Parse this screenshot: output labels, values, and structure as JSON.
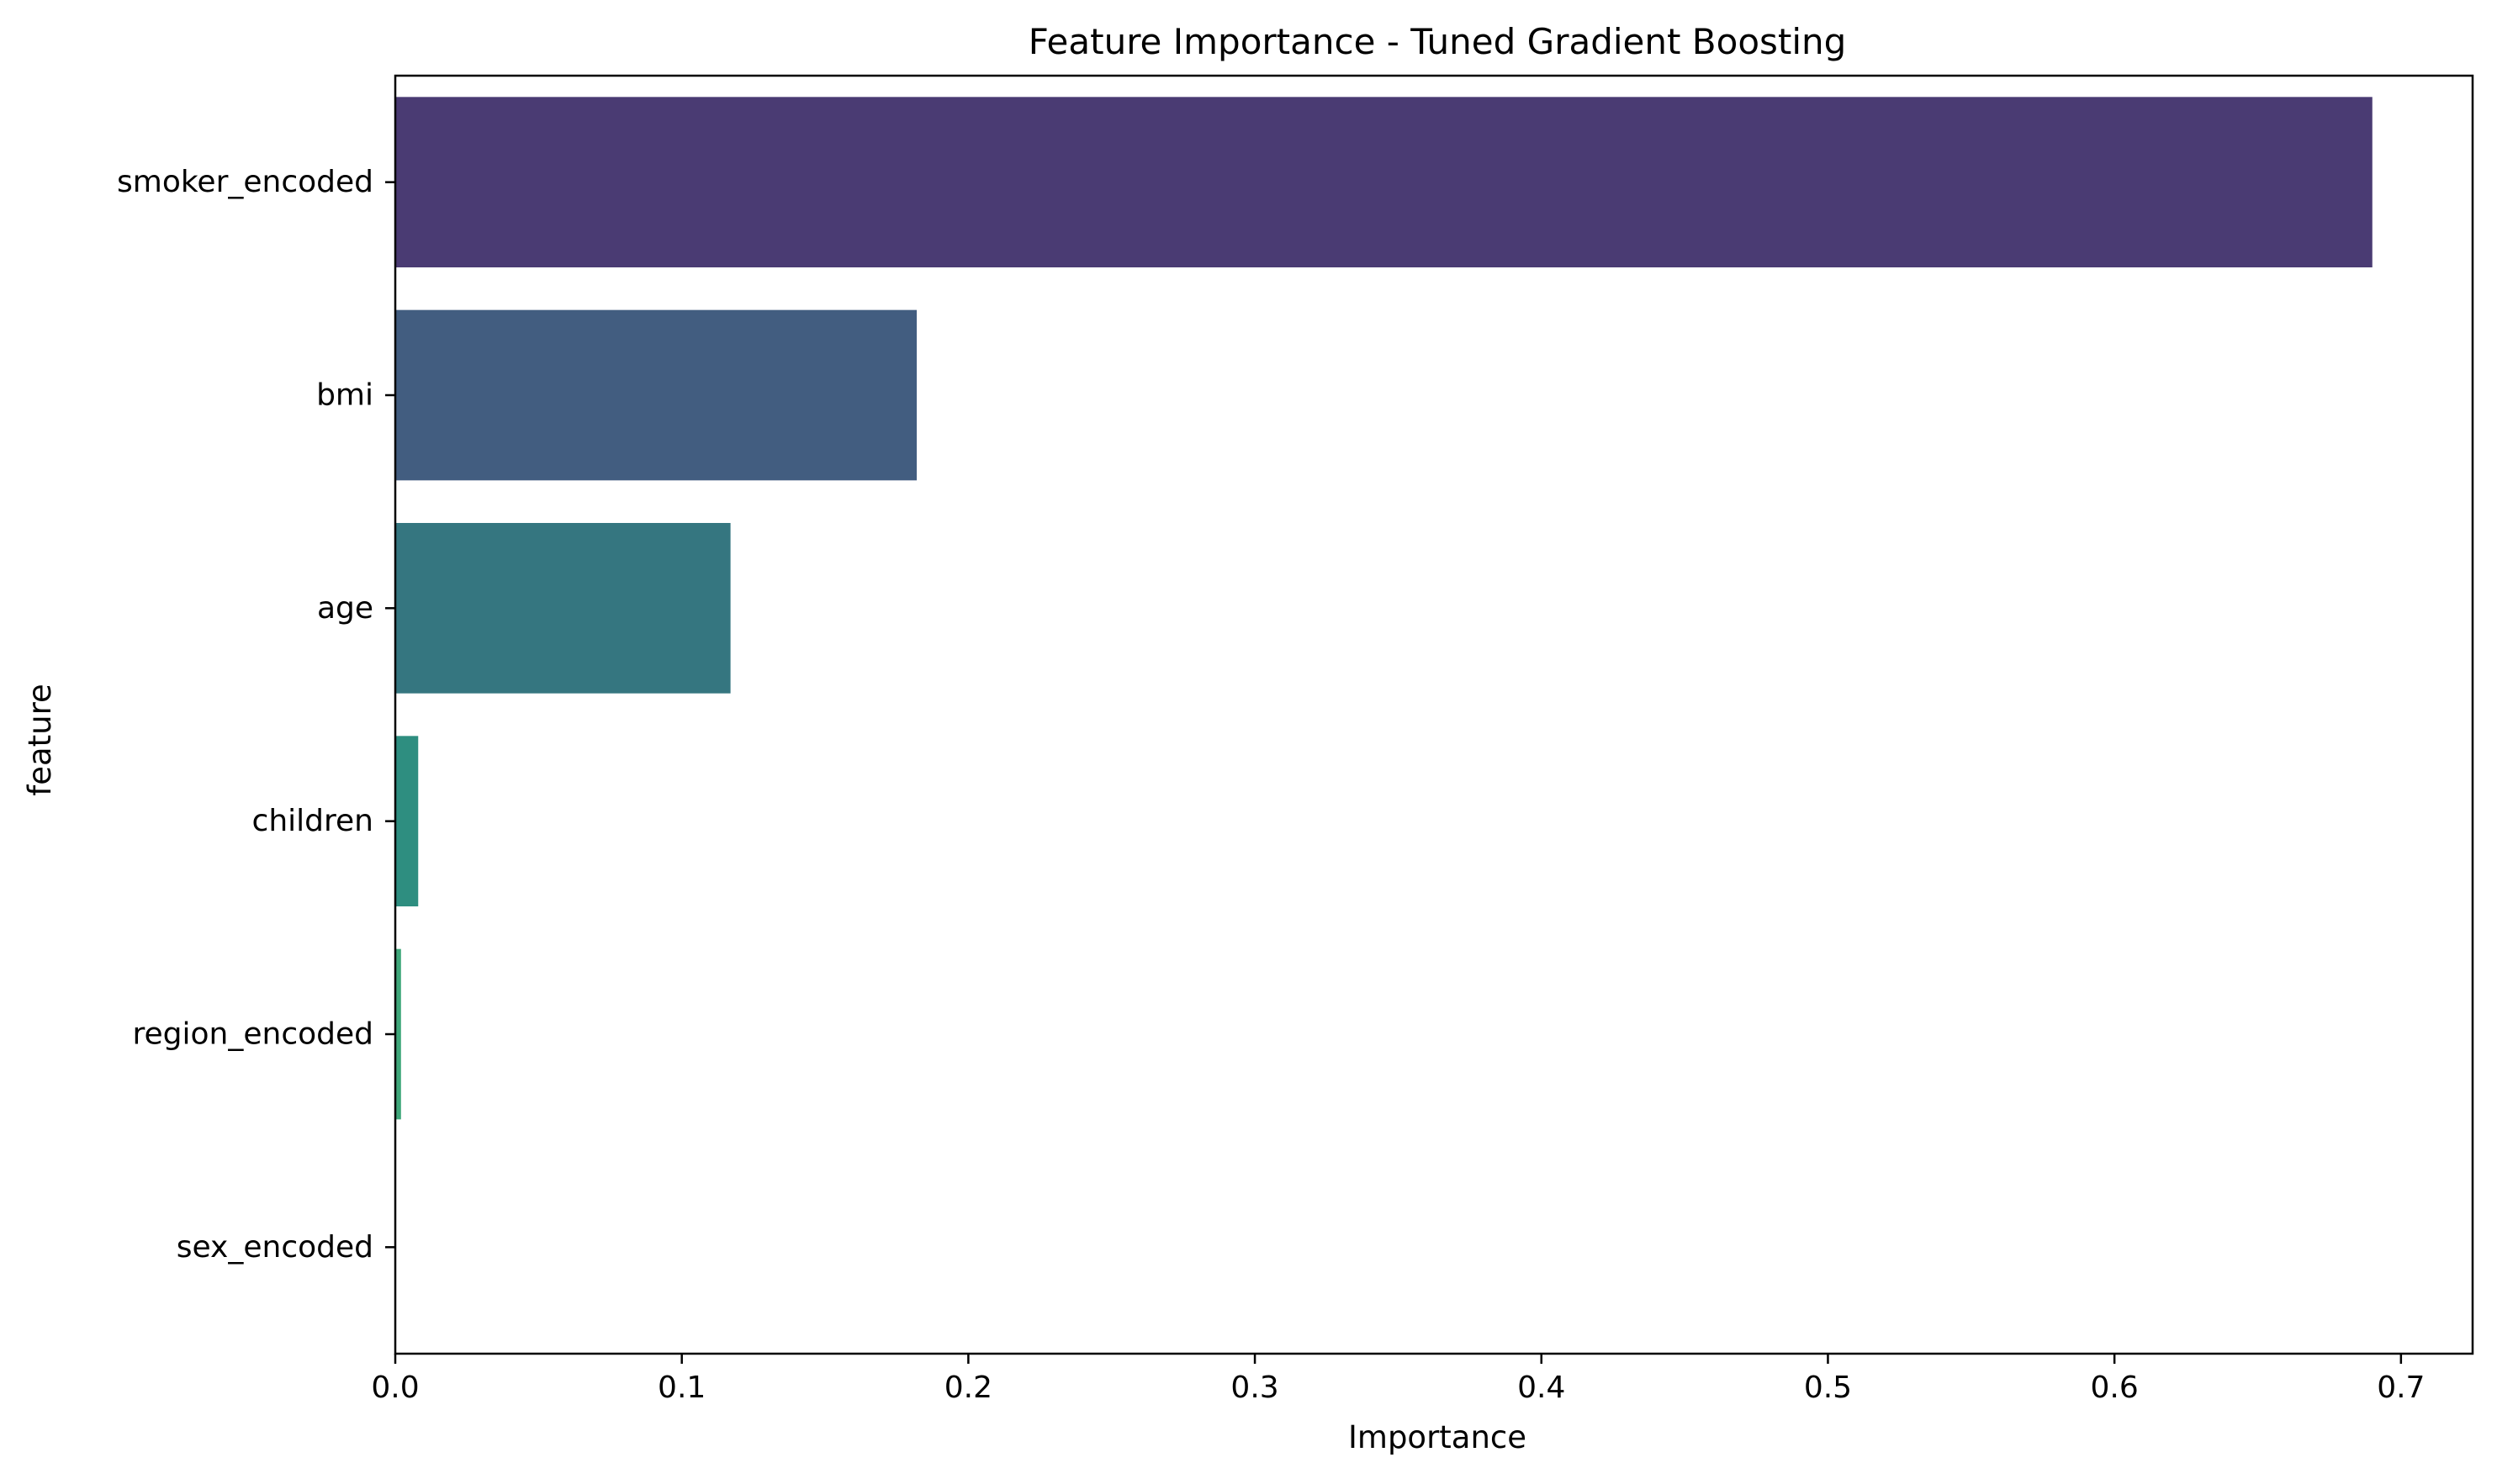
{
  "chart_data": {
    "type": "bar",
    "orientation": "horizontal",
    "title": "Feature Importance - Tuned Gradient Boosting",
    "xlabel": "Importance",
    "ylabel": "feature",
    "categories": [
      "smoker_encoded",
      "bmi",
      "age",
      "children",
      "region_encoded",
      "sex_encoded"
    ],
    "values": [
      0.69,
      0.182,
      0.117,
      0.008,
      0.002,
      0.0
    ],
    "colors": [
      "#4a3b73",
      "#425d80",
      "#357680",
      "#2e8e80",
      "#3fa77a",
      "#6ccd5a"
    ],
    "xlim": [
      0,
      0.725
    ],
    "xticks": [
      0.0,
      0.1,
      0.2,
      0.3,
      0.4,
      0.5,
      0.6,
      0.7
    ],
    "xtick_labels": [
      "0.0",
      "0.1",
      "0.2",
      "0.3",
      "0.4",
      "0.5",
      "0.6",
      "0.7"
    ],
    "grid": false,
    "legend": "none"
  }
}
